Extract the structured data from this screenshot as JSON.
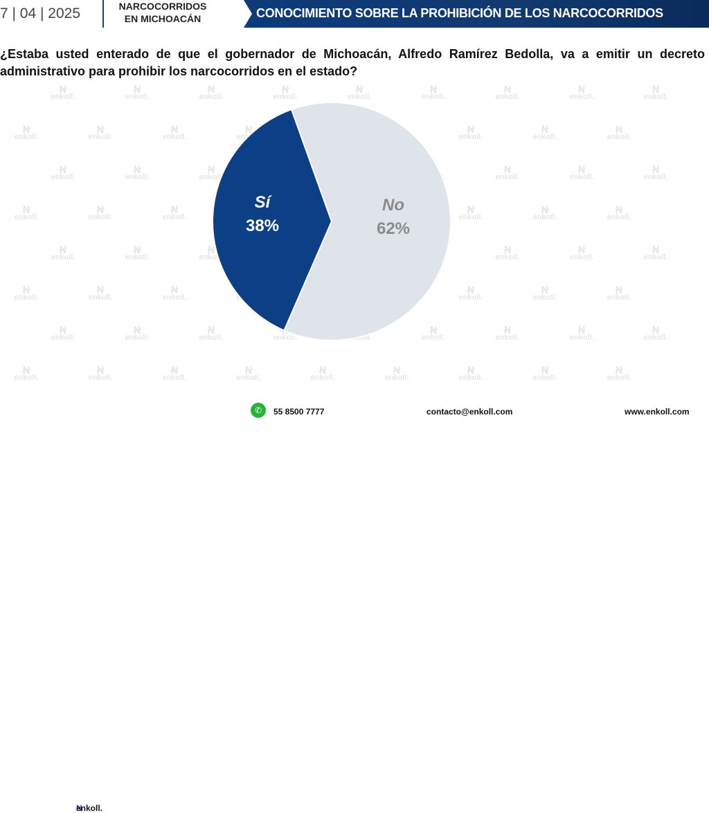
{
  "header": {
    "date": "7 | 04 | 2025",
    "topic": "NARCOCORRIDOS EN MICHOACÁN",
    "title": "CONOCIMIENTO SOBRE LA PROHIBICIÓN DE LOS NARCOCORRIDOS"
  },
  "question": "¿Estaba usted enterado de que el gobernador de Michoacán, Alfredo Ramírez Bedolla, va a emitir un decreto administrativo para prohibir los narcocorridos en el estado?",
  "watermark": "enkoll.",
  "chart_data": {
    "type": "pie",
    "title": "¿Estaba usted enterado de que el gobernador de Michoacán, Alfredo Ramírez Bedolla, va a emitir un decreto administrativo para prohibir los narcocorridos en el estado?",
    "slices": [
      {
        "label": "Sí",
        "value": 38,
        "display": "38%",
        "color": "#0d3f86",
        "text_color": "#ffffff"
      },
      {
        "label": "No",
        "value": 62,
        "display": "62%",
        "color": "#dfe3ea",
        "text_color": "#8a8a8a"
      }
    ]
  },
  "footer": {
    "logo": "enkoll.",
    "phone": "55 8500 7777",
    "email": "contacto@enkoll.com",
    "web": "www.enkoll.com"
  }
}
